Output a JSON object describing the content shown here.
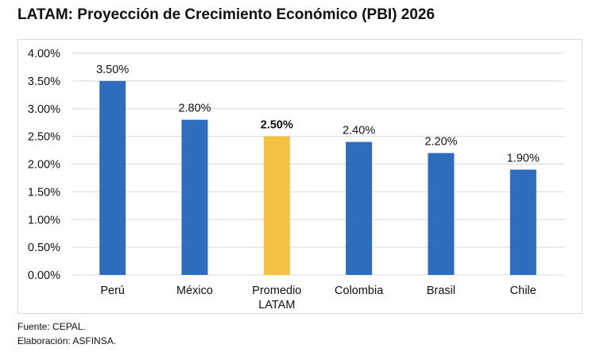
{
  "chart_data": {
    "type": "bar",
    "title": "LATAM: Proyección de Crecimiento Económico (PBI) 2026",
    "categories": [
      "Perú",
      "México",
      "Promedio LATAM",
      "Colombia",
      "Brasil",
      "Chile"
    ],
    "values": [
      3.5,
      2.8,
      2.5,
      2.4,
      2.2,
      1.9
    ],
    "data_labels": [
      "3.50%",
      "2.80%",
      "2.50%",
      "2.40%",
      "2.20%",
      "1.90%"
    ],
    "highlight_index": 2,
    "ylim": [
      0,
      4
    ],
    "yticks": [
      "0.00%",
      "0.50%",
      "1.00%",
      "1.50%",
      "2.00%",
      "2.50%",
      "3.00%",
      "3.50%",
      "4.00%"
    ],
    "grid": true,
    "legend": "none",
    "colors": {
      "bar": "#2E6DBE",
      "highlight": "#F5C242",
      "grid": "#d9d9d9"
    }
  },
  "footer": {
    "source": "Fuente: CEPAL.",
    "elaboration": "Elaboración: ASFINSA."
  }
}
